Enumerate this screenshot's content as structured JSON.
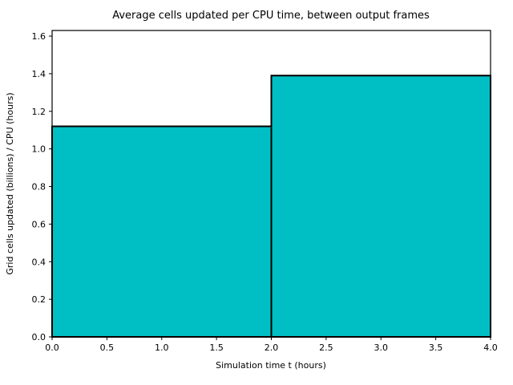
{
  "figure": {
    "title": "Average cells updated per CPU time, between output frames"
  },
  "chart_data": {
    "type": "bar",
    "title": "Average cells updated per CPU time, between output frames",
    "xlabel": "Simulation time t (hours)",
    "ylabel": "Grid cells updated (billions) / CPU (hours)",
    "bars": [
      {
        "x_start": 0.0,
        "x_end": 2.0,
        "value": 1.12
      },
      {
        "x_start": 2.0,
        "x_end": 4.0,
        "value": 1.39
      }
    ],
    "xlim": [
      0.0,
      4.0
    ],
    "ylim": [
      0.0,
      1.63
    ],
    "x_ticks": [
      0.0,
      0.5,
      1.0,
      1.5,
      2.0,
      2.5,
      3.0,
      3.5,
      4.0
    ],
    "y_ticks": [
      0.0,
      0.2,
      0.4,
      0.6,
      0.8,
      1.0,
      1.2,
      1.4,
      1.6
    ],
    "grid": false,
    "legend": "none",
    "bar_fill": "#00bfc4",
    "bar_edge": "#000000",
    "axis_color": "#000000"
  }
}
